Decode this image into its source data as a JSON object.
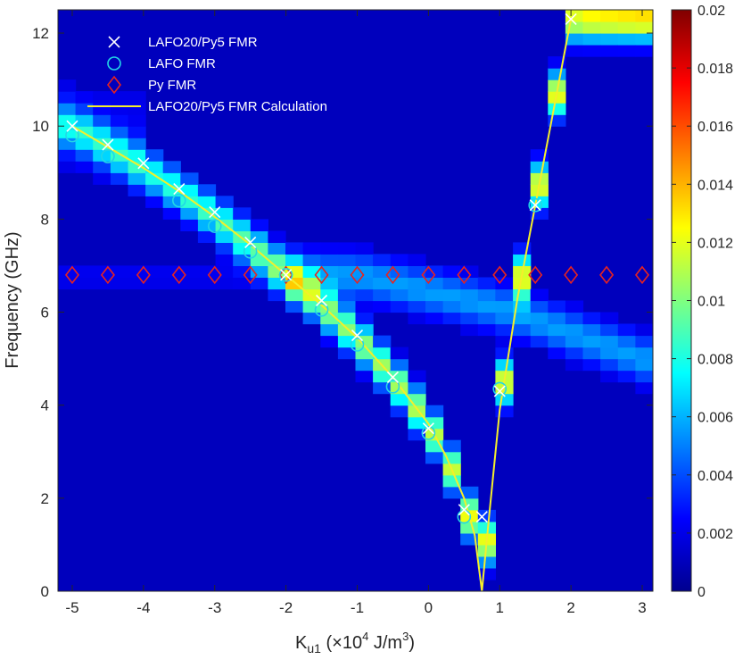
{
  "chart_data": {
    "type": "heatmap",
    "title": "",
    "xlabel": {
      "main": "K",
      "sub": "u1",
      "rest": " (×10",
      "exp": "4",
      "unit": " J/m",
      "unitexp": "3",
      "close": ")"
    },
    "ylabel": "Frequency (GHz)",
    "xlim": [
      -5.2,
      3.15
    ],
    "ylim": [
      0,
      12.5
    ],
    "x_ticks": [
      -5,
      -4,
      -3,
      -2,
      -1,
      0,
      1,
      2,
      3
    ],
    "x_tick_labels": [
      "-5",
      "-4",
      "-3",
      "-2",
      "-1",
      "0",
      "1",
      "2",
      "3"
    ],
    "y_ticks": [
      0,
      2,
      4,
      6,
      8,
      10,
      12
    ],
    "y_tick_labels": [
      "0",
      "2",
      "4",
      "6",
      "8",
      "10",
      "12"
    ],
    "colorbar": {
      "colormap": "jet",
      "min": 0,
      "max": 0.02,
      "ticks": [
        0,
        0.002,
        0.004,
        0.006,
        0.008,
        0.01,
        0.012,
        0.014,
        0.016,
        0.018,
        0.02
      ],
      "tick_labels": [
        "0",
        "0.002",
        "0.004",
        "0.006",
        "0.008",
        "0.01",
        "0.012",
        "0.014",
        "0.016",
        "0.018",
        "0.02"
      ]
    },
    "legend_position": "top-left",
    "series": [
      {
        "name": "LAFO20/Py5 FMR",
        "marker": "x",
        "color": "#ffffff",
        "x": [
          -5,
          -4.5,
          -4,
          -3.5,
          -3,
          -2.5,
          -2,
          -1.5,
          -1,
          -0.5,
          0,
          0.5,
          0.75,
          1,
          1.5,
          2
        ],
        "y": [
          10.0,
          9.6,
          9.2,
          8.65,
          8.15,
          7.5,
          6.8,
          6.25,
          5.5,
          4.6,
          3.5,
          1.75,
          1.6,
          4.3,
          8.3,
          12.3
        ]
      },
      {
        "name": "LAFO FMR",
        "marker": "circle",
        "color": "#22d7e6",
        "x": [
          -5,
          -4.5,
          -3.5,
          -3,
          -2.5,
          -2,
          -1.5,
          -1,
          -0.5,
          0,
          0.5,
          1,
          1.5
        ],
        "y": [
          9.8,
          9.35,
          8.4,
          7.85,
          7.3,
          6.8,
          6.05,
          5.3,
          4.4,
          3.4,
          1.6,
          4.35,
          8.3
        ]
      },
      {
        "name": "Py FMR",
        "marker": "diamond",
        "color": "#e8231f",
        "x": [
          -5,
          -4.5,
          -4,
          -3.5,
          -3,
          -2.5,
          -2,
          -1.5,
          -1,
          -0.5,
          0,
          0.5,
          1,
          1.5,
          2,
          2.5,
          3
        ],
        "y": [
          6.8,
          6.8,
          6.8,
          6.8,
          6.8,
          6.8,
          6.8,
          6.8,
          6.8,
          6.8,
          6.8,
          6.8,
          6.8,
          6.8,
          6.8,
          6.8,
          6.8
        ]
      },
      {
        "name": "LAFO20/Py5 FMR Calculation",
        "marker": "line",
        "color": "#f5ef2a",
        "x": [
          -5,
          -4.5,
          -4,
          -3.5,
          -3,
          -2.5,
          -2,
          -1.5,
          -1,
          -0.5,
          0,
          0.25,
          0.5,
          0.65,
          0.75,
          0.85,
          1,
          1.25,
          1.5,
          1.75,
          2
        ],
        "y": [
          10.0,
          9.55,
          9.1,
          8.6,
          8.05,
          7.45,
          6.8,
          6.15,
          5.45,
          4.6,
          3.6,
          2.9,
          2.0,
          1.2,
          0,
          1.6,
          3.9,
          6.3,
          8.3,
          10.3,
          12.3
        ]
      }
    ]
  }
}
